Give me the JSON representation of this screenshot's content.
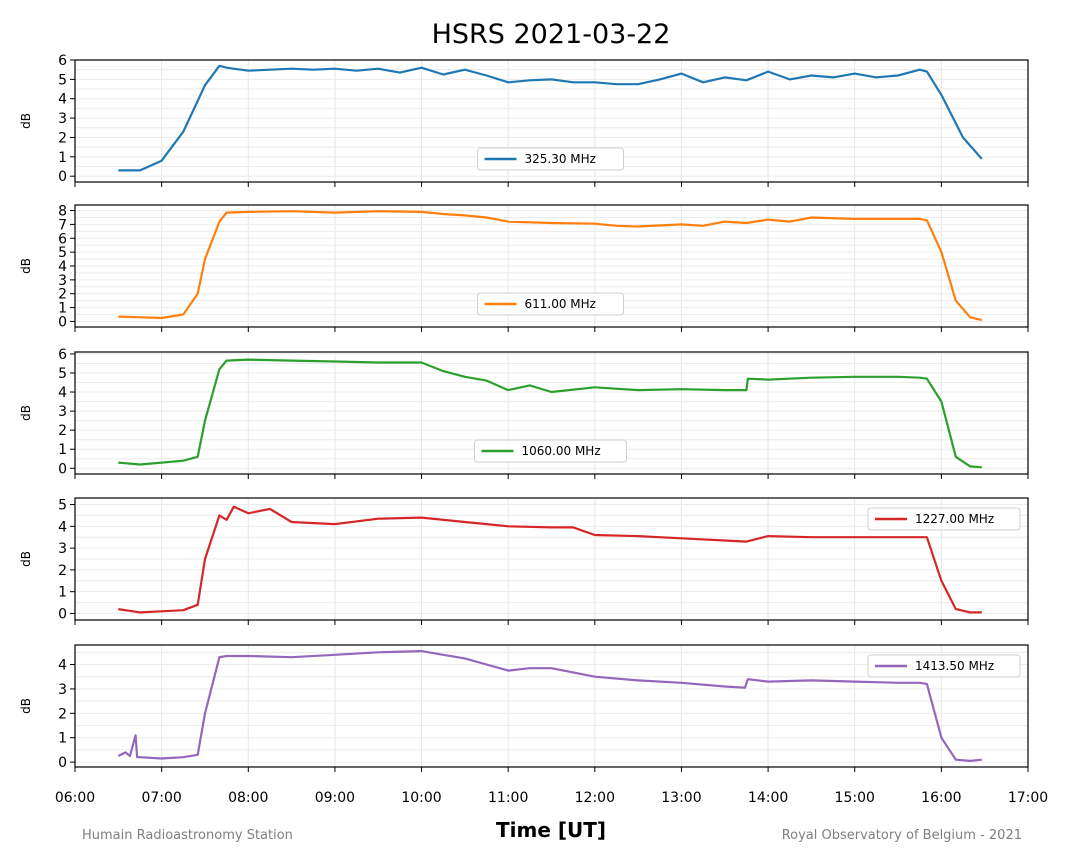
{
  "figure": {
    "title": "HSRS 2021-03-22",
    "credit_left": "Humain Radioastronomy Station",
    "credit_right": "Royal Observatory of Belgium - 2021"
  },
  "chart_data": {
    "type": "line",
    "title": "HSRS 2021-03-22",
    "xlabel": "Time [UT]",
    "ylabel": "dB",
    "xlim": [
      "06:00",
      "17:00"
    ],
    "xticks": [
      "06:00",
      "07:00",
      "08:00",
      "09:00",
      "10:00",
      "11:00",
      "12:00",
      "13:00",
      "14:00",
      "15:00",
      "16:00",
      "17:00"
    ],
    "grid": true,
    "panels": [
      {
        "name": "325.30 MHz",
        "color": "#1f77b4",
        "ylim": [
          -0.3,
          6.0
        ],
        "yticks": [
          0,
          1,
          2,
          3,
          4,
          5,
          6
        ],
        "legend": "bottom-center",
        "x": [
          "06:30",
          "06:45",
          "07:00",
          "07:15",
          "07:30",
          "07:40",
          "07:45",
          "08:00",
          "08:15",
          "08:30",
          "08:45",
          "09:00",
          "09:15",
          "09:30",
          "09:45",
          "10:00",
          "10:15",
          "10:30",
          "10:45",
          "11:00",
          "11:15",
          "11:30",
          "11:45",
          "12:00",
          "12:15",
          "12:30",
          "12:45",
          "13:00",
          "13:15",
          "13:30",
          "13:45",
          "14:00",
          "14:15",
          "14:30",
          "14:45",
          "15:00",
          "15:15",
          "15:30",
          "15:45",
          "15:50",
          "16:00",
          "16:15",
          "16:28"
        ],
        "values": [
          0.3,
          0.3,
          0.8,
          2.3,
          4.7,
          5.7,
          5.6,
          5.45,
          5.5,
          5.55,
          5.5,
          5.55,
          5.45,
          5.55,
          5.35,
          5.6,
          5.25,
          5.5,
          5.2,
          4.85,
          4.95,
          5.0,
          4.85,
          4.85,
          4.75,
          4.75,
          5.0,
          5.3,
          4.85,
          5.1,
          4.95,
          5.4,
          5.0,
          5.2,
          5.1,
          5.3,
          5.1,
          5.2,
          5.5,
          5.4,
          4.2,
          2.0,
          0.9
        ]
      },
      {
        "name": "611.00 MHz",
        "color": "#ff7f0e",
        "ylim": [
          -0.4,
          8.4
        ],
        "yticks": [
          0,
          1,
          2,
          3,
          4,
          5,
          6,
          7,
          8
        ],
        "legend": "bottom-center",
        "x": [
          "06:30",
          "06:45",
          "07:00",
          "07:15",
          "07:25",
          "07:30",
          "07:40",
          "07:45",
          "08:00",
          "08:30",
          "09:00",
          "09:30",
          "10:00",
          "10:15",
          "10:30",
          "10:45",
          "11:00",
          "11:15",
          "11:30",
          "12:00",
          "12:15",
          "12:30",
          "13:00",
          "13:15",
          "13:30",
          "13:45",
          "14:00",
          "14:15",
          "14:30",
          "15:00",
          "15:30",
          "15:45",
          "15:50",
          "16:00",
          "16:10",
          "16:20",
          "16:28"
        ],
        "values": [
          0.35,
          0.3,
          0.25,
          0.5,
          2.0,
          4.5,
          7.2,
          7.85,
          7.9,
          7.95,
          7.85,
          7.95,
          7.9,
          7.75,
          7.65,
          7.5,
          7.2,
          7.15,
          7.1,
          7.05,
          6.9,
          6.85,
          7.0,
          6.9,
          7.2,
          7.1,
          7.35,
          7.2,
          7.5,
          7.4,
          7.4,
          7.4,
          7.3,
          5.0,
          1.5,
          0.3,
          0.1
        ]
      },
      {
        "name": "1060.00 MHz",
        "color": "#2ca02c",
        "ylim": [
          -0.3,
          6.1
        ],
        "yticks": [
          0,
          1,
          2,
          3,
          4,
          5,
          6
        ],
        "legend": "bottom-center",
        "x": [
          "06:30",
          "06:45",
          "07:00",
          "07:15",
          "07:25",
          "07:30",
          "07:40",
          "07:45",
          "08:00",
          "08:30",
          "09:00",
          "09:30",
          "10:00",
          "10:15",
          "10:30",
          "10:45",
          "11:00",
          "11:15",
          "11:30",
          "12:00",
          "12:30",
          "13:00",
          "13:30",
          "13:45",
          "13:46",
          "14:00",
          "14:30",
          "15:00",
          "15:30",
          "15:45",
          "15:50",
          "16:00",
          "16:10",
          "16:20",
          "16:28"
        ],
        "values": [
          0.3,
          0.2,
          0.3,
          0.4,
          0.6,
          2.5,
          5.2,
          5.65,
          5.7,
          5.65,
          5.6,
          5.55,
          5.55,
          5.1,
          4.8,
          4.6,
          4.1,
          4.35,
          4.0,
          4.25,
          4.1,
          4.15,
          4.1,
          4.1,
          4.7,
          4.65,
          4.75,
          4.8,
          4.8,
          4.75,
          4.7,
          3.5,
          0.6,
          0.1,
          0.05
        ]
      },
      {
        "name": "1227.00 MHz",
        "color": "#d62728",
        "ylim": [
          -0.3,
          5.3
        ],
        "yticks": [
          0,
          1,
          2,
          3,
          4,
          5
        ],
        "legend": "top-right",
        "x": [
          "06:30",
          "06:45",
          "07:00",
          "07:15",
          "07:25",
          "07:30",
          "07:40",
          "07:45",
          "07:50",
          "08:00",
          "08:15",
          "08:30",
          "09:00",
          "09:30",
          "10:00",
          "10:30",
          "10:45",
          "11:00",
          "11:30",
          "11:45",
          "12:00",
          "12:30",
          "13:00",
          "13:30",
          "13:45",
          "14:00",
          "14:30",
          "15:00",
          "15:30",
          "15:50",
          "16:00",
          "16:10",
          "16:20",
          "16:28"
        ],
        "values": [
          0.2,
          0.05,
          0.1,
          0.15,
          0.4,
          2.5,
          4.5,
          4.3,
          4.9,
          4.6,
          4.8,
          4.2,
          4.1,
          4.35,
          4.4,
          4.2,
          4.1,
          4.0,
          3.95,
          3.95,
          3.6,
          3.55,
          3.45,
          3.35,
          3.3,
          3.55,
          3.5,
          3.5,
          3.5,
          3.5,
          1.5,
          0.2,
          0.05,
          0.05
        ]
      },
      {
        "name": "1413.50 MHz",
        "color": "#9467bd",
        "ylim": [
          -0.2,
          4.8
        ],
        "yticks": [
          0,
          1,
          2,
          3,
          4
        ],
        "legend": "top-right",
        "x": [
          "06:30",
          "06:35",
          "06:38",
          "06:42",
          "06:43",
          "06:45",
          "07:00",
          "07:15",
          "07:25",
          "07:30",
          "07:40",
          "07:45",
          "08:00",
          "08:30",
          "09:00",
          "09:30",
          "10:00",
          "10:15",
          "10:30",
          "10:45",
          "11:00",
          "11:15",
          "11:30",
          "12:00",
          "12:30",
          "13:00",
          "13:30",
          "13:44",
          "13:46",
          "14:00",
          "14:30",
          "15:00",
          "15:30",
          "15:45",
          "15:50",
          "16:00",
          "16:10",
          "16:20",
          "16:28"
        ],
        "values": [
          0.25,
          0.4,
          0.25,
          1.1,
          0.2,
          0.2,
          0.15,
          0.2,
          0.3,
          2.0,
          4.3,
          4.35,
          4.35,
          4.3,
          4.4,
          4.5,
          4.55,
          4.4,
          4.25,
          4.0,
          3.75,
          3.85,
          3.85,
          3.5,
          3.35,
          3.25,
          3.1,
          3.05,
          3.4,
          3.3,
          3.35,
          3.3,
          3.25,
          3.25,
          3.2,
          1.0,
          0.1,
          0.05,
          0.1
        ]
      }
    ]
  }
}
